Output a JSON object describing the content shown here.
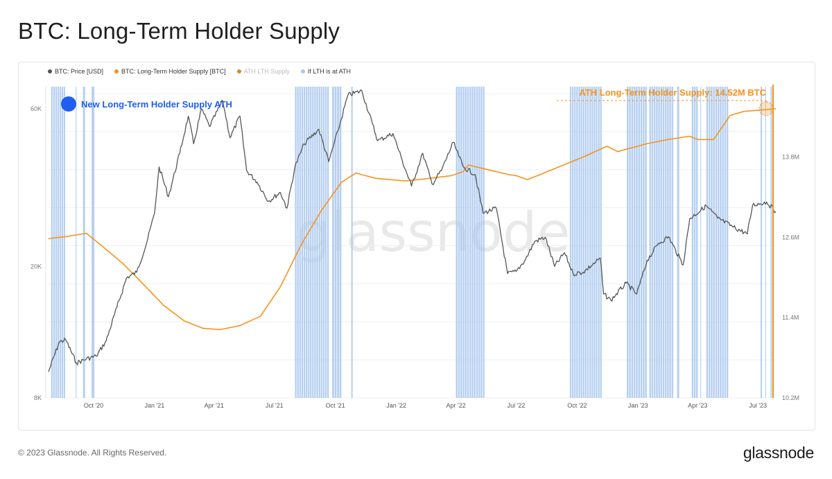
{
  "page": {
    "title": "BTC: Long-Term Holder Supply",
    "footer_copyright": "© 2023 Glassnode. All Rights Reserved.",
    "footer_brand": "glassnode",
    "watermark": "glassnode"
  },
  "legend": [
    {
      "label": "BTC: Price [USD]",
      "color": "#555555",
      "label_color": "#333333"
    },
    {
      "label": "BTC: Long-Term Holder Supply [BTC]",
      "color": "#f7931a",
      "label_color": "#333333"
    },
    {
      "label": "ATH LTH Supply",
      "color": "#d68a2a",
      "label_color": "#bbbbbb"
    },
    {
      "label": "If LTH is at ATH",
      "color": "#a9c8ef",
      "label_color": "#333333"
    }
  ],
  "annotations": {
    "new_ath_label": "New Long-Term Holder Supply ATH",
    "new_ath_color": "#1f5ef0",
    "ath_callout": "ATH Long-Term Holder Supply: 14.52M BTC",
    "ath_callout_color": "#f7931a"
  },
  "chart_data": {
    "type": "line",
    "x_type": "date",
    "x_range": [
      "2020-07-25",
      "2023-07-28"
    ],
    "x_ticks": [
      {
        "date": "2020-10-01",
        "label": "Oct '20"
      },
      {
        "date": "2021-01-01",
        "label": "Jan '21"
      },
      {
        "date": "2021-04-01",
        "label": "Apr '21"
      },
      {
        "date": "2021-07-01",
        "label": "Jul '21"
      },
      {
        "date": "2021-10-01",
        "label": "Oct '21"
      },
      {
        "date": "2022-01-01",
        "label": "Jan '22"
      },
      {
        "date": "2022-04-01",
        "label": "Apr '22"
      },
      {
        "date": "2022-07-01",
        "label": "Jul '22"
      },
      {
        "date": "2022-10-01",
        "label": "Oct '22"
      },
      {
        "date": "2023-01-01",
        "label": "Jan '23"
      },
      {
        "date": "2023-04-01",
        "label": "Apr '23"
      },
      {
        "date": "2023-07-01",
        "label": "Jul '23"
      }
    ],
    "y_left": {
      "scale": "log",
      "range": [
        8000,
        70000
      ],
      "ticks": [
        {
          "value": 8000,
          "label": "8K"
        },
        {
          "value": 20000,
          "label": "20K"
        },
        {
          "value": 60000,
          "label": "60K"
        }
      ]
    },
    "y_right": {
      "scale": "linear",
      "range": [
        10200000,
        14850000
      ],
      "ticks": [
        {
          "value": 10200000,
          "label": "10.2M"
        },
        {
          "value": 11400000,
          "label": "11.4M"
        },
        {
          "value": 12600000,
          "label": "12.6M"
        },
        {
          "value": 13800000,
          "label": "13.8M"
        }
      ]
    },
    "grid": true,
    "series": [
      {
        "name": "BTC: Price [USD]",
        "axis": "left",
        "color": "#555555",
        "points": [
          [
            "2020-07-25",
            9600
          ],
          [
            "2020-08-10",
            11800
          ],
          [
            "2020-08-20",
            12000
          ],
          [
            "2020-09-05",
            10200
          ],
          [
            "2020-09-20",
            10500
          ],
          [
            "2020-10-05",
            10700
          ],
          [
            "2020-10-20",
            11900
          ],
          [
            "2020-11-05",
            15000
          ],
          [
            "2020-11-20",
            18500
          ],
          [
            "2020-12-05",
            19200
          ],
          [
            "2020-12-20",
            23500
          ],
          [
            "2021-01-01",
            29000
          ],
          [
            "2021-01-08",
            40000
          ],
          [
            "2021-01-22",
            32500
          ],
          [
            "2021-02-08",
            44000
          ],
          [
            "2021-02-21",
            57000
          ],
          [
            "2021-03-01",
            47000
          ],
          [
            "2021-03-13",
            60000
          ],
          [
            "2021-03-25",
            53000
          ],
          [
            "2021-04-14",
            63500
          ],
          [
            "2021-04-25",
            49000
          ],
          [
            "2021-05-10",
            57000
          ],
          [
            "2021-05-20",
            39000
          ],
          [
            "2021-06-05",
            36000
          ],
          [
            "2021-06-22",
            31500
          ],
          [
            "2021-07-10",
            33500
          ],
          [
            "2021-07-20",
            30000
          ],
          [
            "2021-08-01",
            40000
          ],
          [
            "2021-08-15",
            47000
          ],
          [
            "2021-09-06",
            52000
          ],
          [
            "2021-09-21",
            41500
          ],
          [
            "2021-10-05",
            51500
          ],
          [
            "2021-10-20",
            66000
          ],
          [
            "2021-11-10",
            68000
          ],
          [
            "2021-11-26",
            54000
          ],
          [
            "2021-12-04",
            48000
          ],
          [
            "2021-12-27",
            50500
          ],
          [
            "2022-01-10",
            41800
          ],
          [
            "2022-01-24",
            35000
          ],
          [
            "2022-02-10",
            44000
          ],
          [
            "2022-02-24",
            35500
          ],
          [
            "2022-03-10",
            39000
          ],
          [
            "2022-03-28",
            47500
          ],
          [
            "2022-04-12",
            40000
          ],
          [
            "2022-04-30",
            38000
          ],
          [
            "2022-05-12",
            29000
          ],
          [
            "2022-06-01",
            30000
          ],
          [
            "2022-06-18",
            19000
          ],
          [
            "2022-07-01",
            19300
          ],
          [
            "2022-07-15",
            21000
          ],
          [
            "2022-07-29",
            23800
          ],
          [
            "2022-08-14",
            24500
          ],
          [
            "2022-08-28",
            20000
          ],
          [
            "2022-09-12",
            22000
          ],
          [
            "2022-09-25",
            19000
          ],
          [
            "2022-10-10",
            19200
          ],
          [
            "2022-10-29",
            20600
          ],
          [
            "2022-11-05",
            21200
          ],
          [
            "2022-11-10",
            16500
          ],
          [
            "2022-11-21",
            15800
          ],
          [
            "2022-12-14",
            17800
          ],
          [
            "2022-12-30",
            16500
          ],
          [
            "2023-01-15",
            20900
          ],
          [
            "2023-02-01",
            23500
          ],
          [
            "2023-02-16",
            24600
          ],
          [
            "2023-03-10",
            20200
          ],
          [
            "2023-03-20",
            27900
          ],
          [
            "2023-04-14",
            30500
          ],
          [
            "2023-05-01",
            28000
          ],
          [
            "2023-05-25",
            26300
          ],
          [
            "2023-06-15",
            25100
          ],
          [
            "2023-06-23",
            30700
          ],
          [
            "2023-07-14",
            31300
          ],
          [
            "2023-07-28",
            29300
          ]
        ]
      },
      {
        "name": "BTC: Long-Term Holder Supply [BTC]",
        "axis": "right",
        "color": "#f7931a",
        "points": [
          [
            "2020-07-25",
            12580000
          ],
          [
            "2020-08-20",
            12610000
          ],
          [
            "2020-09-20",
            12660000
          ],
          [
            "2020-10-15",
            12460000
          ],
          [
            "2020-11-15",
            12200000
          ],
          [
            "2020-12-15",
            11900000
          ],
          [
            "2021-01-15",
            11580000
          ],
          [
            "2021-02-15",
            11350000
          ],
          [
            "2021-03-15",
            11240000
          ],
          [
            "2021-04-10",
            11220000
          ],
          [
            "2021-05-10",
            11280000
          ],
          [
            "2021-06-10",
            11420000
          ],
          [
            "2021-07-10",
            11860000
          ],
          [
            "2021-08-10",
            12480000
          ],
          [
            "2021-09-10",
            13000000
          ],
          [
            "2021-10-10",
            13420000
          ],
          [
            "2021-11-01",
            13560000
          ],
          [
            "2021-12-01",
            13480000
          ],
          [
            "2022-01-15",
            13440000
          ],
          [
            "2022-02-20",
            13480000
          ],
          [
            "2022-03-25",
            13520000
          ],
          [
            "2022-04-12",
            13580000
          ],
          [
            "2022-04-20",
            13680000
          ],
          [
            "2022-05-15",
            13620000
          ],
          [
            "2022-06-18",
            13540000
          ],
          [
            "2022-07-01",
            13520000
          ],
          [
            "2022-07-18",
            13460000
          ],
          [
            "2022-09-01",
            13640000
          ],
          [
            "2022-10-15",
            13820000
          ],
          [
            "2022-11-15",
            13960000
          ],
          [
            "2022-12-01",
            13880000
          ],
          [
            "2023-01-15",
            14000000
          ],
          [
            "2023-02-15",
            14060000
          ],
          [
            "2023-03-20",
            14110000
          ],
          [
            "2023-04-01",
            14060000
          ],
          [
            "2023-04-25",
            14060000
          ],
          [
            "2023-05-20",
            14420000
          ],
          [
            "2023-06-10",
            14480000
          ],
          [
            "2023-07-28",
            14520000
          ]
        ]
      }
    ],
    "ath_bands": [
      [
        "2020-07-29",
        "2020-08-20"
      ],
      [
        "2020-09-04",
        "2020-09-06"
      ],
      [
        "2020-09-15",
        "2020-09-19"
      ],
      [
        "2020-09-28",
        "2020-10-03"
      ],
      [
        "2021-08-01",
        "2021-09-22"
      ],
      [
        "2021-09-26",
        "2021-10-11"
      ],
      [
        "2021-10-25",
        "2021-10-28"
      ],
      [
        "2022-04-01",
        "2022-05-15"
      ],
      [
        "2022-09-20",
        "2022-11-08"
      ],
      [
        "2022-12-15",
        "2023-01-15"
      ],
      [
        "2023-01-18",
        "2023-02-24"
      ],
      [
        "2023-03-01",
        "2023-03-05"
      ],
      [
        "2023-03-23",
        "2023-04-02"
      ],
      [
        "2023-04-05",
        "2023-04-07"
      ],
      [
        "2023-04-14",
        "2023-05-18"
      ],
      [
        "2023-07-05",
        "2023-07-08"
      ],
      [
        "2023-07-12",
        "2023-07-14"
      ],
      [
        "2023-07-20",
        "2023-07-23"
      ]
    ],
    "ath_value": 14520000
  }
}
